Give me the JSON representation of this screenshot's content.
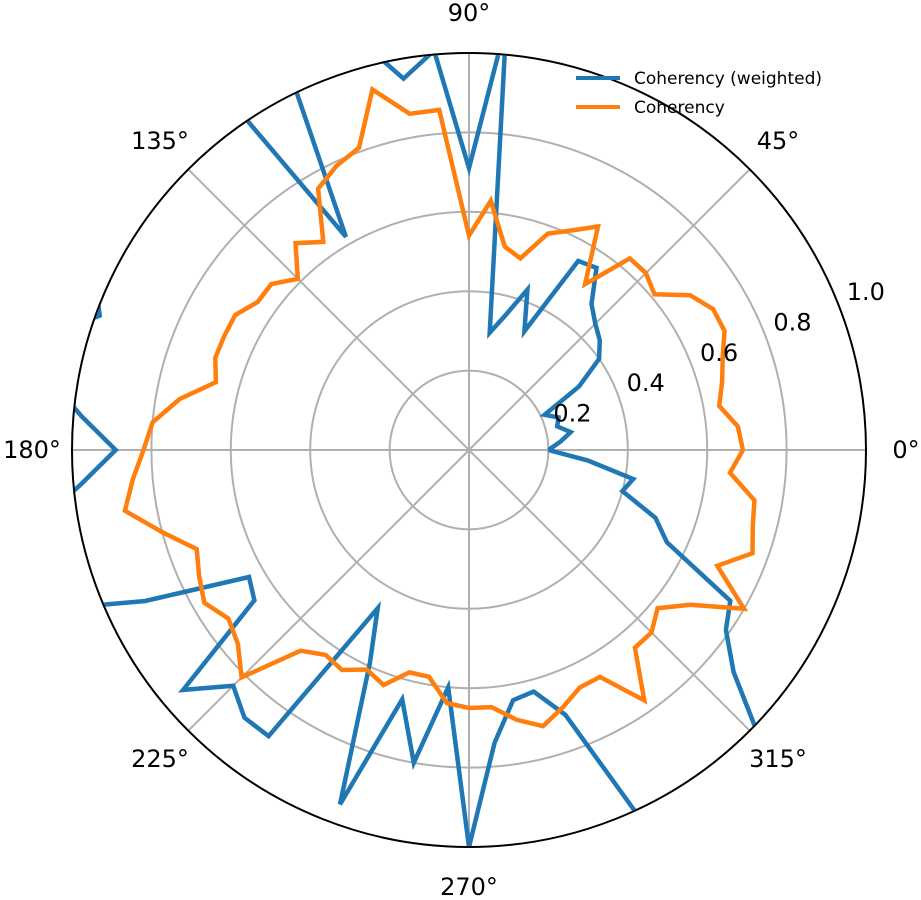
{
  "chart_data": {
    "type": "line",
    "projection": "polar",
    "title": "",
    "angle_unit": "degrees",
    "angle_ticks": [
      "0°",
      "45°",
      "90°",
      "135°",
      "180°",
      "225°",
      "270°",
      "315°"
    ],
    "angle_tick_values": [
      0,
      45,
      90,
      135,
      180,
      225,
      270,
      315
    ],
    "radial_ticks": [
      "0.2",
      "0.4",
      "0.6",
      "0.8",
      "1.0"
    ],
    "radial_tick_values": [
      0.2,
      0.4,
      0.6,
      0.8,
      1.0
    ],
    "rlim": [
      0,
      1.0
    ],
    "grid": true,
    "legend_position": "top-right",
    "theta": [
      0,
      5,
      10,
      15,
      20,
      25,
      30,
      35,
      40,
      45,
      50,
      55,
      60,
      65,
      70,
      75,
      80,
      85,
      90,
      95,
      100,
      105,
      110,
      115,
      120,
      125,
      130,
      135,
      140,
      145,
      150,
      155,
      160,
      165,
      170,
      175,
      180,
      185,
      190,
      195,
      200,
      205,
      210,
      215,
      220,
      225,
      230,
      235,
      240,
      245,
      250,
      255,
      260,
      265,
      270,
      275,
      280,
      285,
      290,
      295,
      300,
      305,
      310,
      315,
      320,
      325,
      330,
      335,
      340,
      345,
      350,
      355
    ],
    "series": [
      {
        "name": "Coherency (weighted)",
        "color": "#1f77b4",
        "values": [
          0.2,
          0.23,
          0.26,
          0.23,
          0.24,
          0.21,
          0.32,
          0.4,
          0.43,
          0.45,
          0.48,
          0.56,
          0.55,
          0.33,
          0.43,
          0.35,
          0.3,
          1.08,
          0.71,
          1.01,
          0.95,
          1.07,
          1.05,
          1.12,
          0.62,
          1.2,
          1.08,
          1.02,
          1.02,
          1.07,
          1.4,
          1.04,
          0.99,
          1.1,
          1.08,
          0.98,
          0.89,
          0.98,
          1.11,
          1.15,
          1.19,
          0.9,
          0.64,
          0.66,
          0.94,
          0.84,
          0.88,
          0.88,
          0.46,
          0.59,
          0.95,
          0.65,
          0.8,
          0.6,
          1.0,
          0.74,
          0.64,
          0.63,
          0.71,
          1.03,
          1.01,
          1.07,
          1.03,
          1.04,
          0.87,
          0.79,
          0.76,
          0.55,
          0.5,
          0.4,
          0.42,
          0.3
        ]
      },
      {
        "name": "Coherency",
        "color": "#ff7f0e",
        "values": [
          0.69,
          0.68,
          0.64,
          0.66,
          0.68,
          0.71,
          0.71,
          0.68,
          0.61,
          0.63,
          0.63,
          0.51,
          0.65,
          0.61,
          0.58,
          0.5,
          0.52,
          0.63,
          0.54,
          0.86,
          0.86,
          0.94,
          0.81,
          0.79,
          0.76,
          0.64,
          0.68,
          0.61,
          0.65,
          0.65,
          0.68,
          0.68,
          0.68,
          0.66,
          0.74,
          0.8,
          0.82,
          0.85,
          0.88,
          0.8,
          0.73,
          0.75,
          0.77,
          0.74,
          0.76,
          0.81,
          0.66,
          0.63,
          0.64,
          0.61,
          0.63,
          0.58,
          0.58,
          0.64,
          0.65,
          0.65,
          0.69,
          0.72,
          0.69,
          0.66,
          0.66,
          0.77,
          0.65,
          0.65,
          0.62,
          0.68,
          0.8,
          0.69,
          0.76,
          0.74,
          0.73,
          0.66
        ]
      }
    ]
  }
}
